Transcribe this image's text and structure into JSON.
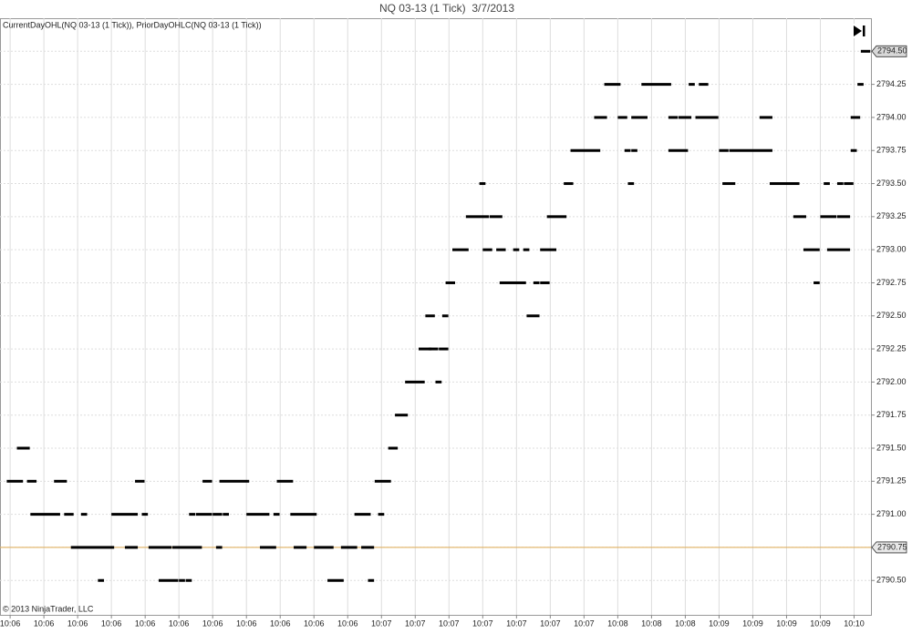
{
  "chart_data": {
    "type": "tick-dash",
    "title": "NQ 03-13 (1 Tick)  3/7/2013",
    "indicator_label": "CurrentDayOHL(NQ 03-13 (1 Tick)), PriorDayOHLC(NQ 03-13 (1 Tick))",
    "copyright": "© 2013 NinjaTrader, LLC",
    "color": "#000000",
    "grid": true,
    "xlim": [
      -3,
      255
    ],
    "ylim": [
      2790.24,
      2794.75
    ],
    "xticks": [
      {
        "value": 0,
        "label": "10:06"
      },
      {
        "value": 10,
        "label": "10:06"
      },
      {
        "value": 20,
        "label": "10:06"
      },
      {
        "value": 30,
        "label": "10:06"
      },
      {
        "value": 40,
        "label": "10:06"
      },
      {
        "value": 50,
        "label": "10:06"
      },
      {
        "value": 60,
        "label": "10:06"
      },
      {
        "value": 70,
        "label": "10:06"
      },
      {
        "value": 80,
        "label": "10:06"
      },
      {
        "value": 90,
        "label": "10:06"
      },
      {
        "value": 100,
        "label": "10:06"
      },
      {
        "value": 110,
        "label": "10:07"
      },
      {
        "value": 120,
        "label": "10:07"
      },
      {
        "value": 130,
        "label": "10:07"
      },
      {
        "value": 140,
        "label": "10:07"
      },
      {
        "value": 150,
        "label": "10:07"
      },
      {
        "value": 160,
        "label": "10:07"
      },
      {
        "value": 170,
        "label": "10:07"
      },
      {
        "value": 180,
        "label": "10:08"
      },
      {
        "value": 190,
        "label": "10:08"
      },
      {
        "value": 200,
        "label": "10:08"
      },
      {
        "value": 210,
        "label": "10:09"
      },
      {
        "value": 220,
        "label": "10:09"
      },
      {
        "value": 230,
        "label": "10:09"
      },
      {
        "value": 240,
        "label": "10:09"
      },
      {
        "value": 250,
        "label": "10:10"
      }
    ],
    "yticks": [
      {
        "value": 2790.5,
        "label": "2790.50"
      },
      {
        "value": 2790.75,
        "label": "2790.75"
      },
      {
        "value": 2791,
        "label": "2791.00"
      },
      {
        "value": 2791.25,
        "label": "2791.25"
      },
      {
        "value": 2791.5,
        "label": "2791.50"
      },
      {
        "value": 2791.75,
        "label": "2791.75"
      },
      {
        "value": 2792,
        "label": "2792.00"
      },
      {
        "value": 2792.25,
        "label": "2792.25"
      },
      {
        "value": 2792.5,
        "label": "2792.50"
      },
      {
        "value": 2792.75,
        "label": "2792.75"
      },
      {
        "value": 2793,
        "label": "2793.00"
      },
      {
        "value": 2793.25,
        "label": "2793.25"
      },
      {
        "value": 2793.5,
        "label": "2793.50"
      },
      {
        "value": 2793.75,
        "label": "2793.75"
      },
      {
        "value": 2794,
        "label": "2794.00"
      },
      {
        "value": 2794.25,
        "label": "2794.25"
      },
      {
        "value": 2794.5,
        "label": "2794.50"
      }
    ],
    "reference_line": {
      "value": 2790.75,
      "label": "2790.75",
      "color": "#e0b060"
    },
    "last_price": {
      "value": 2794.5,
      "label": "2794.50"
    },
    "x": [
      -1,
      5,
      13,
      37,
      57,
      62,
      79,
      108,
      2,
      112,
      6,
      16,
      21,
      30,
      39,
      53,
      55,
      60,
      63,
      70,
      78,
      83,
      102,
      109,
      18,
      34,
      41,
      48,
      61,
      74,
      84,
      90,
      98,
      104,
      26,
      44,
      50,
      52,
      94,
      106,
      114,
      117,
      126,
      121,
      124,
      127,
      123,
      128,
      153,
      129,
      145,
      155,
      157,
      238,
      131,
      140,
      144,
      149,
      152,
      157,
      235,
      242,
      135,
      142,
      159,
      232,
      240,
      245,
      139,
      164,
      183,
      211,
      225,
      241,
      245,
      247,
      166,
      182,
      184,
      195,
      210,
      213,
      249,
      173,
      180,
      184,
      195,
      198,
      203,
      222,
      249,
      176,
      187,
      201,
      204,
      251,
      252
    ],
    "x_end": [
      3,
      7,
      16,
      39,
      59,
      70,
      83,
      112,
      5,
      114,
      14,
      18,
      22,
      37,
      40,
      54,
      59,
      62,
      64,
      76,
      79,
      90,
      106,
      110,
      30,
      37,
      47,
      56,
      62,
      78,
      87,
      95,
      102,
      107,
      27,
      49,
      51,
      53,
      98,
      107,
      117,
      122,
      127,
      124,
      126,
      129,
      125,
      129,
      156,
      131,
      152,
      156,
      159,
      239,
      135,
      142,
      146,
      150,
      153,
      161,
      239,
      248,
      141,
      145,
      164,
      235,
      244,
      248,
      140,
      166,
      184,
      214,
      233,
      242,
      246,
      249,
      174,
      183,
      185,
      200,
      212,
      225,
      250,
      176,
      182,
      188,
      197,
      201,
      209,
      225,
      251,
      180,
      195,
      202,
      206,
      252,
      254
    ],
    "values": [
      2791.25,
      2791.25,
      2791.25,
      2791.25,
      2791.25,
      2791.25,
      2791.25,
      2791.25,
      2791.5,
      2791.5,
      2791,
      2791,
      2791,
      2791,
      2791,
      2791,
      2791,
      2791,
      2791,
      2791,
      2791,
      2791,
      2791,
      2791,
      2790.75,
      2790.75,
      2790.75,
      2790.75,
      2790.75,
      2790.75,
      2790.75,
      2790.75,
      2790.75,
      2790.75,
      2790.5,
      2790.5,
      2790.5,
      2790.5,
      2790.5,
      2790.5,
      2791.75,
      2792,
      2792,
      2792.25,
      2792.25,
      2792.25,
      2792.5,
      2792.5,
      2792.5,
      2792.75,
      2792.75,
      2792.75,
      2792.75,
      2792.75,
      2793,
      2793,
      2793,
      2793,
      2793,
      2793,
      2793,
      2793,
      2793.25,
      2793.25,
      2793.25,
      2793.25,
      2793.25,
      2793.25,
      2793.5,
      2793.5,
      2793.5,
      2793.5,
      2793.5,
      2793.5,
      2793.5,
      2793.5,
      2793.75,
      2793.75,
      2793.75,
      2793.75,
      2793.75,
      2793.75,
      2793.75,
      2794,
      2794,
      2794,
      2794,
      2794,
      2794,
      2794,
      2794,
      2794.25,
      2794.25,
      2794.25,
      2794.25,
      2794.25,
      2794.5
    ]
  }
}
